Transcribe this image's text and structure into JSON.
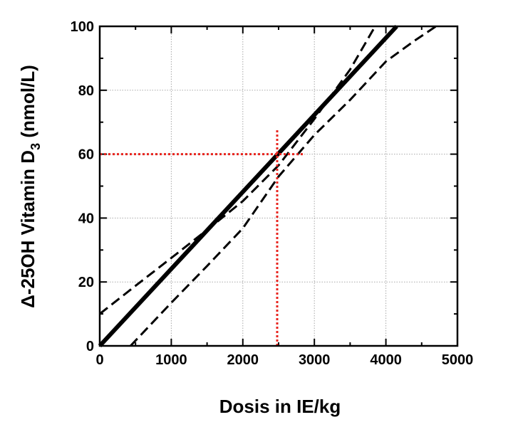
{
  "chart_data": {
    "type": "line",
    "xlabel": "Dosis in IE/kg",
    "ylabel": {
      "prefix": "Δ-25OH  Vitamin D",
      "subscript": "3",
      "suffix": "  (nmol/L)"
    },
    "xlim": [
      0,
      5000
    ],
    "ylim": [
      0,
      100
    ],
    "xticks": [
      0,
      1000,
      2000,
      3000,
      4000,
      5000
    ],
    "yticks": [
      0,
      20,
      40,
      60,
      80,
      100
    ],
    "grid": true,
    "series": [
      {
        "style": "solid",
        "color": "#000000",
        "x": [
          0,
          4150
        ],
        "y": [
          0,
          100
        ]
      },
      {
        "style": "dashed",
        "color": "#000000",
        "x": [
          0,
          500,
          1000,
          1500,
          2000,
          2500,
          3000,
          3500,
          3850
        ],
        "y": [
          10,
          18.8,
          27.5,
          36.3,
          45.3,
          56.5,
          71,
          86.5,
          100
        ]
      },
      {
        "style": "dashed",
        "color": "#000000",
        "x": [
          430,
          1000,
          1500,
          2000,
          2500,
          3000,
          3500,
          4000,
          4400,
          4700
        ],
        "y": [
          0,
          13.5,
          25,
          36.8,
          53,
          66,
          77,
          89,
          95.5,
          100
        ]
      }
    ],
    "annotations": [
      {
        "style": "dotted",
        "color": "#e8251f",
        "x": [
          0,
          2850
        ],
        "y": [
          60,
          60
        ]
      },
      {
        "style": "dotted",
        "color": "#e8251f",
        "x": [
          2480,
          2480
        ],
        "y": [
          0,
          68
        ]
      }
    ]
  }
}
